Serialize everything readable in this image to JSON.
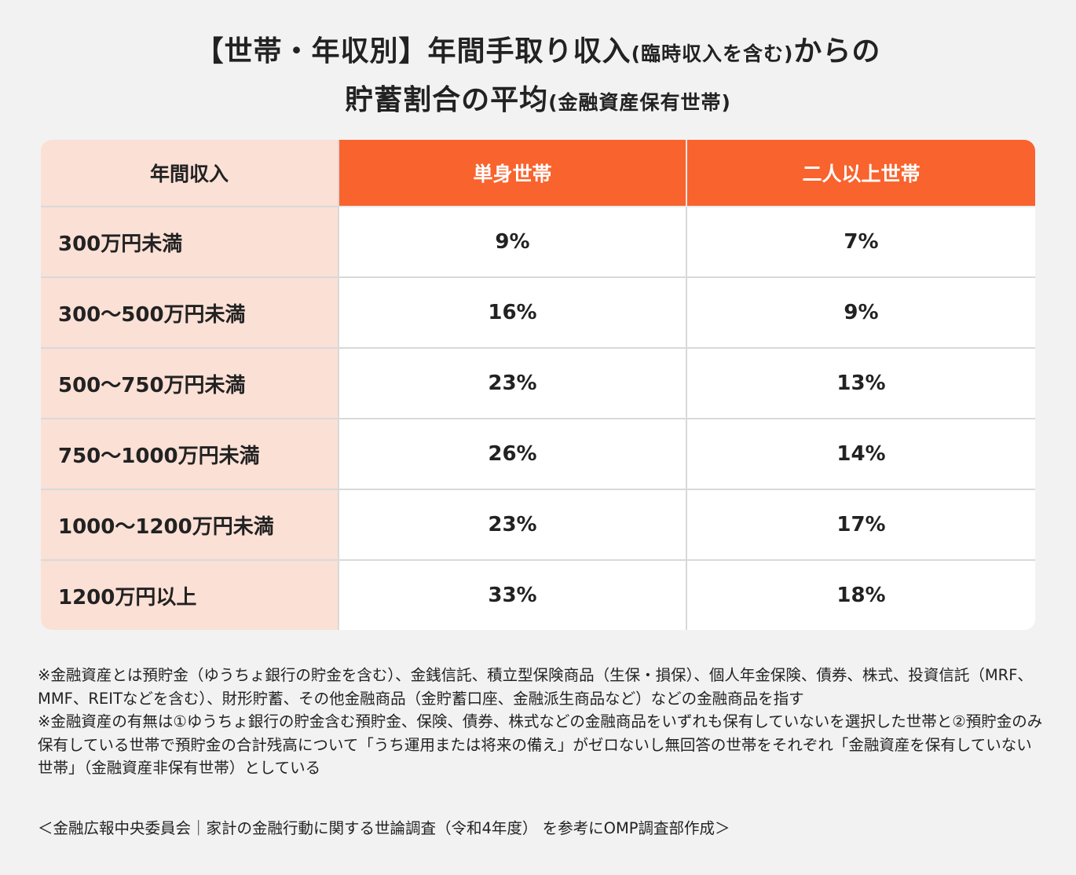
{
  "title": {
    "line1_main": "【世帯・年収別】年間手取り収入",
    "line1_paren": "(臨時収入を含む)",
    "line1_end": "からの",
    "line2_main": "貯蓄割合の平均",
    "line2_paren": "(金融資産保有世帯)"
  },
  "table": {
    "headers": [
      "年間収入",
      "単身世帯",
      "二人以上世帯"
    ],
    "rows": [
      {
        "income": "300万円未満",
        "single": "9%",
        "multi": "7%"
      },
      {
        "income": "300〜500万円未満",
        "single": "16%",
        "multi": "9%"
      },
      {
        "income": "500〜750万円未満",
        "single": "23%",
        "multi": "13%"
      },
      {
        "income": "750〜1000万円未満",
        "single": "26%",
        "multi": "14%"
      },
      {
        "income": "1000〜1200万円未満",
        "single": "23%",
        "multi": "17%"
      },
      {
        "income": "1200万円以上",
        "single": "33%",
        "multi": "18%"
      }
    ]
  },
  "notes": [
    "※金融資産とは預貯金（ゆうちょ銀行の貯金を含む）、金銭信託、積立型保険商品（生保・損保）、個人年金保険、債券、株式、投資信託（MRF、MMF、REITなどを含む）、財形貯蓄、その他金融商品（金貯蓄口座、金融派生商品など）などの金融商品を指す",
    "※金融資産の有無は①ゆうちょ銀行の貯金含む預貯金、保険、債券、株式などの金融商品をいずれも保有していないを選択した世帯と②預貯金のみ保有している世帯で預貯金の合計残高について「うち運用または将来の備え」がゼロないし無回答の世帯をそれぞれ「金融資産を保有していない世帯」（金融資産非保有世帯）としている"
  ],
  "source": "＜金融広報中央委員会｜家計の金融行動に関する世論調査（令和4年度） を参考にOMP調査部作成＞",
  "colors": {
    "background": "#f2f2f2",
    "header_accent": "#f9632d",
    "label_bg": "#fbe0d6",
    "cell_bg": "#ffffff"
  }
}
